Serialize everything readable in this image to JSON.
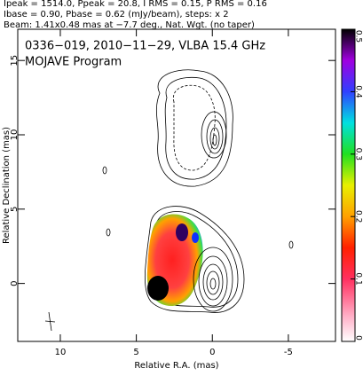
{
  "chart_data": {
    "type": "image",
    "header_lines": [
      "Ipeak = 1514.0, Ppeak = 20.8, I RMS = 0.15, P RMS = 0.16",
      "Ibase = 0.90, Pbase = 0.62 (mJy/beam), steps: x 2",
      "Beam: 1.41x0.48 mas at −7.7 deg., Nat. Wgt. (no taper)"
    ],
    "title": "0336−019, 2010−11−29, VLBA 15.4 GHz",
    "subtitle": "MOJAVE Program",
    "xlabel": "Relative R.A. (mas)",
    "ylabel": "Relative Declination (mas)",
    "xlim": [
      12.8,
      -8.1
    ],
    "xticks": [
      10,
      5,
      0,
      -5
    ],
    "ylim": [
      -3.9,
      17.1
    ],
    "yticks": [
      0,
      5,
      10,
      15
    ],
    "colorbar": {
      "lim": [
        0,
        0.5
      ],
      "ticks": [
        0,
        0.1,
        0.2,
        0.3,
        0.4,
        0.5
      ]
    }
  }
}
